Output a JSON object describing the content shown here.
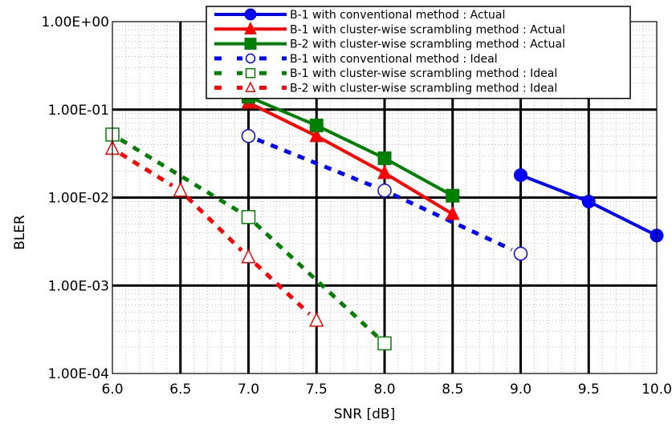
{
  "chart_data": {
    "type": "line",
    "title": "",
    "xlabel": "SNR [dB]",
    "ylabel": "BLER",
    "xlim": [
      6.0,
      10.0
    ],
    "ylim": [
      0.0001,
      1.0
    ],
    "y_scale": "log",
    "x_tick_labels": [
      "6.0",
      "6.5",
      "7.0",
      "7.5",
      "8.0",
      "8.5",
      "9.0",
      "9.5",
      "10.0"
    ],
    "y_tick_labels": [
      "1.00E+00",
      "1.00E-01",
      "1.00E-02",
      "1.00E-03",
      "1.00E-04"
    ],
    "grid": true,
    "legend_position": "top-right",
    "series": [
      {
        "name": "B-1 with conventional method : Actual",
        "color": "#0000ff",
        "style": "solid",
        "marker": "filled-circle",
        "x": [
          9.0,
          9.5,
          10.0
        ],
        "y": [
          0.018,
          0.009,
          0.0037
        ]
      },
      {
        "name": "B-1 with cluster-wise scrambling method : Actual",
        "color": "#ff0000",
        "style": "solid",
        "marker": "filled-triangle",
        "x": [
          7.0,
          7.5,
          8.0,
          8.5
        ],
        "y": [
          0.12,
          0.05,
          0.019,
          0.0065
        ]
      },
      {
        "name": "B-2 with cluster-wise scrambling method : Actual",
        "color": "#008000",
        "style": "solid",
        "marker": "filled-square",
        "x": [
          7.0,
          7.5,
          8.0,
          8.5
        ],
        "y": [
          0.14,
          0.066,
          0.028,
          0.0105
        ]
      },
      {
        "name": "B-1 with conventional method : Ideal",
        "color": "#0000ff",
        "style": "dashed",
        "marker": "open-circle",
        "x": [
          7.0,
          8.0,
          9.0
        ],
        "y": [
          0.05,
          0.012,
          0.0023
        ]
      },
      {
        "name": "B-1 with cluster-wise scrambling method : Ideal",
        "color": "#008000",
        "style": "dashed",
        "marker": "open-square",
        "x": [
          6.0,
          7.0,
          8.0
        ],
        "y": [
          0.052,
          0.006,
          0.00022
        ]
      },
      {
        "name": "B-2 with cluster-wise scrambling method : Ideal",
        "color": "#ff0000",
        "style": "dashed",
        "marker": "open-triangle",
        "x": [
          6.0,
          6.5,
          7.0,
          7.5
        ],
        "y": [
          0.036,
          0.012,
          0.0021,
          0.0004
        ]
      }
    ]
  }
}
